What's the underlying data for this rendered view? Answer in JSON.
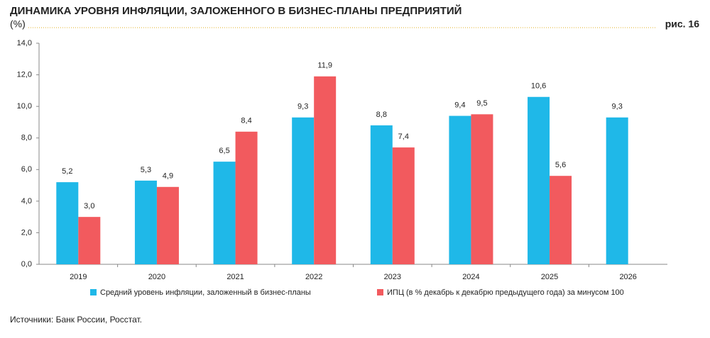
{
  "chart_data": {
    "type": "bar",
    "title": "ДИНАМИКА УРОВНЯ ИНФЛЯЦИИ, ЗАЛОЖЕННОГО В БИЗНЕС-ПЛАНЫ ПРЕДПРИЯТИЙ",
    "subtitle": "(%)",
    "figure_label": "рис. 16",
    "source": "Источники: Банк России, Росстат.",
    "categories": [
      "2019",
      "2020",
      "2021",
      "2022",
      "2023",
      "2024",
      "2025",
      "2026"
    ],
    "series": [
      {
        "name": "Средний уровень инфляции, заложенный в бизнес-планы",
        "color": "#1fb8e8",
        "values": [
          5.2,
          5.3,
          6.5,
          9.3,
          8.8,
          9.4,
          10.6,
          9.3
        ],
        "value_labels": [
          "5,2",
          "5,3",
          "6,5",
          "9,3",
          "8,8",
          "9,4",
          "10,6",
          "9,3"
        ]
      },
      {
        "name": "ИПЦ (в % декабрь к декабрю предыдущего года) за минусом 100",
        "color": "#f25a5e",
        "values": [
          3.0,
          4.9,
          8.4,
          11.9,
          7.4,
          9.5,
          5.6,
          null
        ],
        "value_labels": [
          "3,0",
          "4,9",
          "8,4",
          "11,9",
          "7,4",
          "9,5",
          "5,6",
          null
        ]
      }
    ],
    "ylim": [
      0,
      14
    ],
    "yticks": [
      {
        "value": 0,
        "label": "0,0"
      },
      {
        "value": 2,
        "label": "2,0"
      },
      {
        "value": 4,
        "label": "4,0"
      },
      {
        "value": 6,
        "label": "6,0"
      },
      {
        "value": 8,
        "label": "8,0"
      },
      {
        "value": 10,
        "label": "10,0"
      },
      {
        "value": 12,
        "label": "12,0"
      },
      {
        "value": 14,
        "label": "14,0"
      }
    ],
    "grid": false
  }
}
